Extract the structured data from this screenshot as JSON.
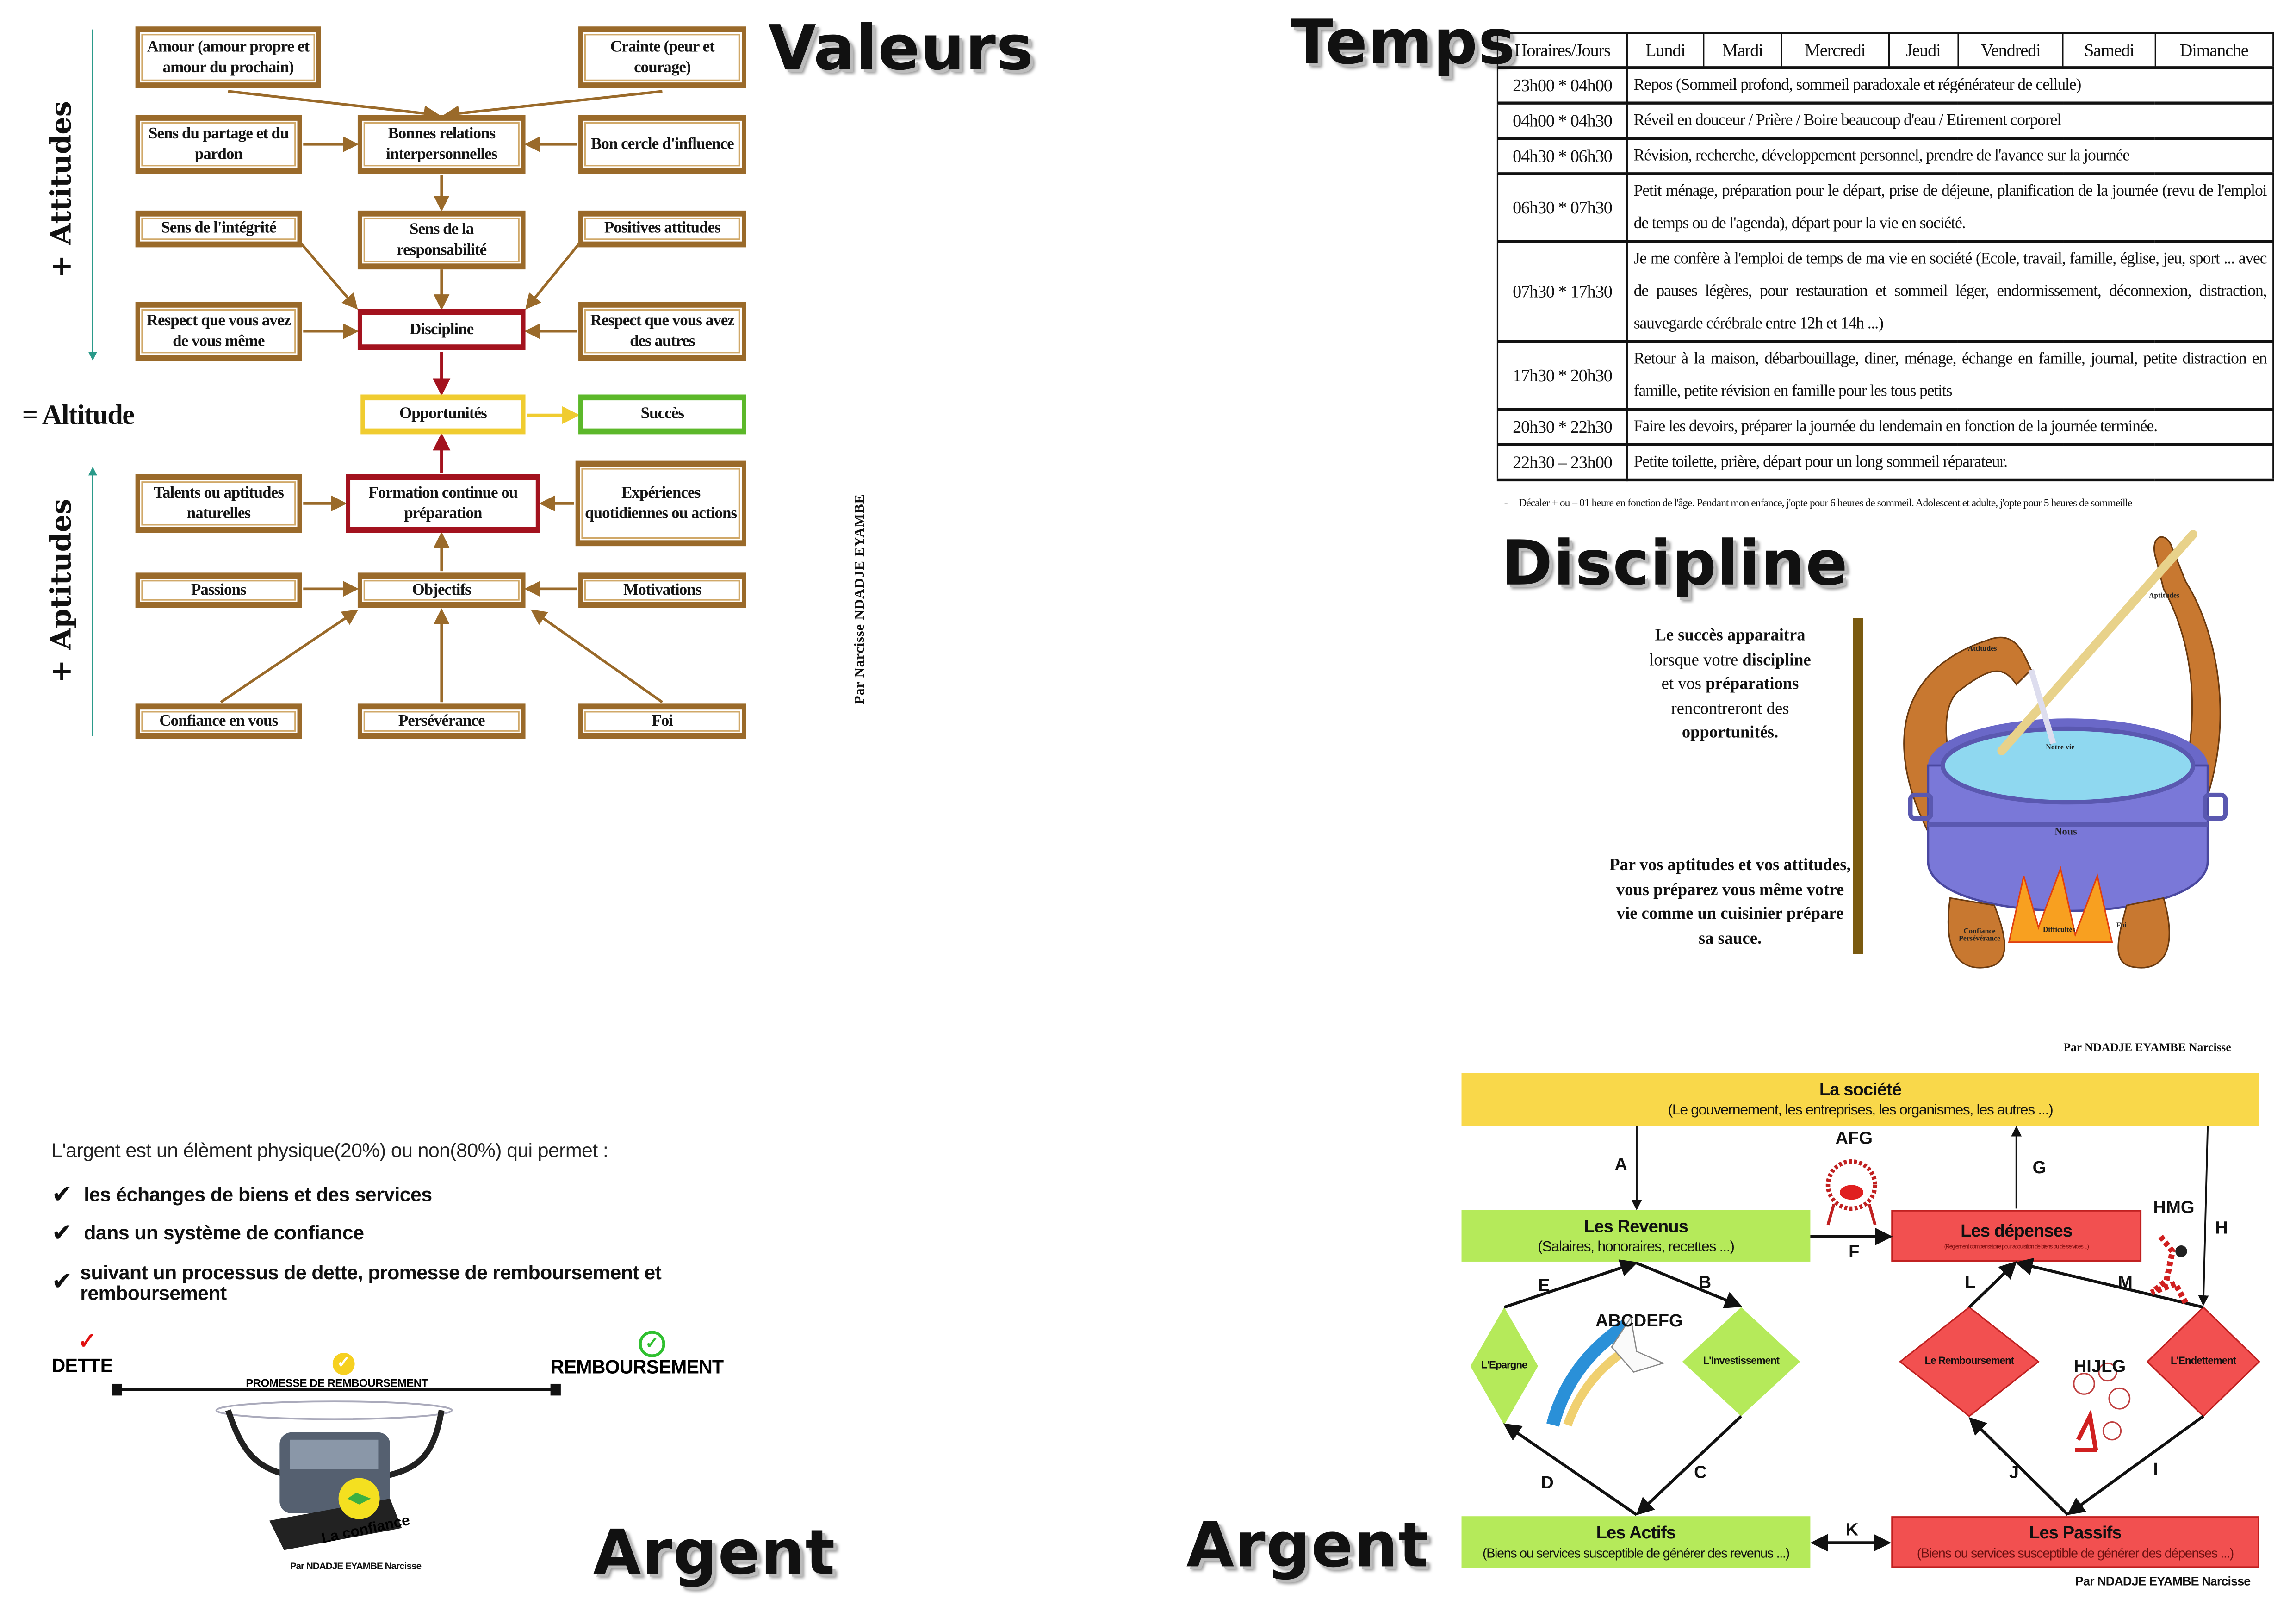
{
  "colors": {
    "box_brown": "#9a6a2a",
    "discipline_red": "#a3121e",
    "opportunity_yellow": "#f0cc30",
    "success_green": "#5cb82a",
    "axis_teal": "#2a9a8a",
    "society_yellow": "#f9d84a",
    "positive_green": "#b5ea5a",
    "negative_red": "#f25050"
  },
  "valeurs": {
    "title": "Valeurs",
    "attitudes_label": "+ Attitudes",
    "aptitudes_label": "+ Aptitudes",
    "altitude_label": "= Altitude",
    "author": "Par Narcisse NDADJE EYAMBE",
    "boxes": {
      "amour": "Amour (amour propre et amour du prochain)",
      "crainte": "Crainte (peur et courage)",
      "partage": "Sens du partage et du pardon",
      "bonnes_relations": "Bonnes relations interpersonnelles",
      "bon_cercle": "Bon cercle d'influence",
      "integrite": "Sens de l'intégrité",
      "responsabilite": "Sens de la responsabilité",
      "positives": "Positives attitudes",
      "respect_soi": "Respect que vous avez de vous même",
      "discipline": "Discipline",
      "respect_autres": "Respect que vous avez des autres",
      "opportunites": "Opportunités",
      "succes": "Succès",
      "talents": "Talents ou aptitudes naturelles",
      "formation": "Formation continue ou préparation",
      "experiences": "Expériences quotidiennes ou actions",
      "passions": "Passions",
      "objectifs": "Objectifs",
      "motivations": "Motivations",
      "confiance": "Confiance en vous",
      "perseverance": "Persévérance",
      "foi": "Foi"
    }
  },
  "temps": {
    "title": "Temps",
    "headers": [
      "Horaires/Jours",
      "Lundi",
      "Mardi",
      "Mercredi",
      "Jeudi",
      "Vendredi",
      "Samedi",
      "Dimanche"
    ],
    "rows": [
      {
        "time": "23h00 * 04h00",
        "activity": "Repos (Sommeil profond, sommeil paradoxale et régénérateur de cellule)"
      },
      {
        "time": "04h00 * 04h30",
        "activity": "Réveil en douceur / Prière / Boire beaucoup d'eau / Etirement corporel"
      },
      {
        "time": "04h30 * 06h30",
        "activity": "Révision, recherche, développement personnel, prendre de l'avance sur la journée"
      },
      {
        "time": "06h30 * 07h30",
        "activity": "Petit ménage, préparation pour le départ, prise de déjeune, planification de la journée (revu de l'emploi de temps ou de l'agenda), départ pour la vie en société."
      },
      {
        "time": "07h30 * 17h30",
        "activity": "Je me confère à l'emploi de temps de ma vie en société (Ecole, travail, famille, église, jeu, sport ... avec de pauses légères, pour restauration et sommeil léger, endormissement, déconnexion, distraction, sauvegarde cérébrale entre 12h et 14h ...)"
      },
      {
        "time": "17h30 * 20h30",
        "activity": "Retour à la maison, débarbouillage, diner, ménage, échange en famille, journal, petite distraction en famille, petite révision en famille pour les tous petits"
      },
      {
        "time": "20h30 * 22h30",
        "activity": "Faire les devoirs, préparer la journée du lendemain en fonction de la journée terminée."
      },
      {
        "time": "22h30 – 23h00",
        "activity": "Petite toilette, prière, départ pour un long sommeil réparateur."
      }
    ],
    "footnote": "Décaler + ou – 01 heure en fonction de l'âge. Pendant mon enfance, j'opte pour 6 heures de sommeil. Adolescent et adulte, j'opte pour 5 heures de sommeille"
  },
  "discipline": {
    "title": "Discipline",
    "text1_parts": [
      "Le succès apparaitra",
      "lorsque votre ",
      "discipline",
      "et vos ",
      "préparations",
      "rencontreront des",
      "opportunités."
    ],
    "text2": "Par vos aptitudes et vos attitudes, vous préparez vous même votre vie comme un cuisinier prépare sa sauce.",
    "illustration_labels": {
      "aptitudes": "Aptitudes",
      "attitudes": "Attitudes",
      "notre_vie": "Notre vie",
      "nous": "Nous",
      "confiance": "Confiance Persévérance",
      "difficultes": "Difficultés",
      "foi": "Foi"
    },
    "author": "Par NDADJE EYAMBE Narcisse"
  },
  "argent_left": {
    "title": "Argent",
    "intro": "L'argent est un élèment physique(20%) ou non(80%) qui permet :",
    "bullets": [
      "les échanges de biens et des services",
      "dans un système de confiance",
      "suivant un processus de dette, promesse de remboursement et remboursement"
    ],
    "dette": "DETTE",
    "promesse": "PROMESSE DE REMBOURSEMENT",
    "remboursement": "REMBOURSEMENT",
    "confiance": "La confiance",
    "author": "Par NDADJE EYAMBE Narcisse"
  },
  "argent_right": {
    "title": "Argent",
    "societe": {
      "title": "La société",
      "subtitle": "(Le gouvernement, les entreprises, les organismes, les autres ...)"
    },
    "revenus": {
      "title": "Les Revenus",
      "subtitle": "(Salaires, honoraires, recettes ...)"
    },
    "depenses": {
      "title": "Les dépenses",
      "subtitle": "(Règlement compensatoire pour acquisition de biens ou de services ...)"
    },
    "actifs": {
      "title": "Les Actifs",
      "subtitle": "(Biens ou services susceptible de générer des revenus ...)"
    },
    "passifs": {
      "title": "Les Passifs",
      "subtitle": "(Biens ou services susceptible de générer des dépenses ...)"
    },
    "diamonds": {
      "epargne": "L'Epargne",
      "investissement": "L'Investissement",
      "remboursement": "Le Remboursement",
      "endettement": "L'Endettement"
    },
    "letters": {
      "A": "A",
      "B": "B",
      "C": "C",
      "D": "D",
      "E": "E",
      "F": "F",
      "G": "G",
      "H": "H",
      "I": "I",
      "J": "J",
      "K": "K",
      "L": "L",
      "M": "M"
    },
    "groups": {
      "afg": "AFG",
      "hmg": "HMG",
      "abcdefg": "ABCDEFG",
      "hijlg": "HIJLG"
    },
    "author": "Par NDADJE EYAMBE Narcisse"
  }
}
